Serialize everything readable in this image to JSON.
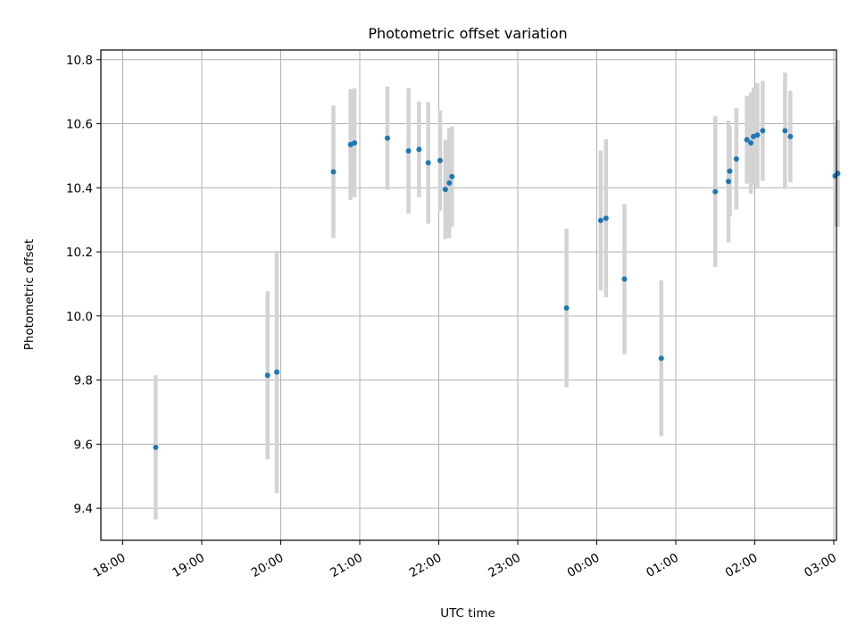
{
  "chart_data": {
    "type": "scatter",
    "title": "Photometric offset variation",
    "xlabel": "UTC time",
    "ylabel": "Photometric offset",
    "grid": true,
    "x_ticks": [
      "18:00",
      "19:00",
      "20:00",
      "21:00",
      "22:00",
      "23:00",
      "00:00",
      "01:00",
      "02:00",
      "03:00"
    ],
    "x_range": [
      "17:55",
      "03:00"
    ],
    "y_ticks": [
      9.4,
      9.6,
      9.8,
      10.0,
      10.2,
      10.4,
      10.6,
      10.8
    ],
    "ylim": [
      9.3,
      10.83
    ],
    "colors": {
      "points": "#1f77b4",
      "errorbars": "#d3d3d3",
      "grid": "#b0b0b0"
    },
    "series": [
      {
        "points": [
          {
            "x": "18:25",
            "y": 9.59,
            "lo": 9.365,
            "hi": 9.815
          },
          {
            "x": "19:50",
            "y": 9.815,
            "lo": 9.553,
            "hi": 10.077
          },
          {
            "x": "19:57",
            "y": 9.825,
            "lo": 9.447,
            "hi": 10.203
          },
          {
            "x": "20:40",
            "y": 10.45,
            "lo": 10.243,
            "hi": 10.657
          },
          {
            "x": "20:53",
            "y": 10.535,
            "lo": 10.362,
            "hi": 10.708
          },
          {
            "x": "20:56",
            "y": 10.54,
            "lo": 10.371,
            "hi": 10.711
          },
          {
            "x": "21:21",
            "y": 10.555,
            "lo": 10.394,
            "hi": 10.716
          },
          {
            "x": "21:37",
            "y": 10.515,
            "lo": 10.319,
            "hi": 10.711
          },
          {
            "x": "21:45",
            "y": 10.52,
            "lo": 10.371,
            "hi": 10.669
          },
          {
            "x": "21:52",
            "y": 10.478,
            "lo": 10.288,
            "hi": 10.668
          },
          {
            "x": "22:01",
            "y": 10.485,
            "lo": 10.328,
            "hi": 10.642
          },
          {
            "x": "22:05",
            "y": 10.395,
            "lo": 10.24,
            "hi": 10.55
          },
          {
            "x": "22:08",
            "y": 10.415,
            "lo": 10.243,
            "hi": 10.587
          },
          {
            "x": "22:10",
            "y": 10.435,
            "lo": 10.279,
            "hi": 10.591
          },
          {
            "x": "23:37",
            "y": 10.025,
            "lo": 9.778,
            "hi": 10.272
          },
          {
            "x": "00:03",
            "y": 10.298,
            "lo": 10.08,
            "hi": 10.516
          },
          {
            "x": "00:07",
            "y": 10.305,
            "lo": 10.058,
            "hi": 10.552
          },
          {
            "x": "00:21",
            "y": 10.115,
            "lo": 9.881,
            "hi": 10.349
          },
          {
            "x": "00:49",
            "y": 9.868,
            "lo": 9.625,
            "hi": 10.111
          },
          {
            "x": "01:30",
            "y": 10.388,
            "lo": 10.153,
            "hi": 10.623
          },
          {
            "x": "01:40",
            "y": 10.42,
            "lo": 10.23,
            "hi": 10.61
          },
          {
            "x": "01:41",
            "y": 10.452,
            "lo": 10.311,
            "hi": 10.593
          },
          {
            "x": "01:46",
            "y": 10.49,
            "lo": 10.332,
            "hi": 10.648
          },
          {
            "x": "01:54",
            "y": 10.55,
            "lo": 10.413,
            "hi": 10.687
          },
          {
            "x": "01:57",
            "y": 10.54,
            "lo": 10.382,
            "hi": 10.698
          },
          {
            "x": "01:59",
            "y": 10.56,
            "lo": 10.408,
            "hi": 10.712
          },
          {
            "x": "02:02",
            "y": 10.565,
            "lo": 10.403,
            "hi": 10.727
          },
          {
            "x": "02:06",
            "y": 10.578,
            "lo": 10.422,
            "hi": 10.734
          },
          {
            "x": "02:23",
            "y": 10.578,
            "lo": 10.397,
            "hi": 10.759
          },
          {
            "x": "02:27",
            "y": 10.56,
            "lo": 10.417,
            "hi": 10.703
          },
          {
            "x": "03:01",
            "y": 10.437,
            "lo": 10.281,
            "hi": 10.593
          },
          {
            "x": "03:03",
            "y": 10.445,
            "lo": 10.278,
            "hi": 10.612
          }
        ]
      }
    ]
  }
}
